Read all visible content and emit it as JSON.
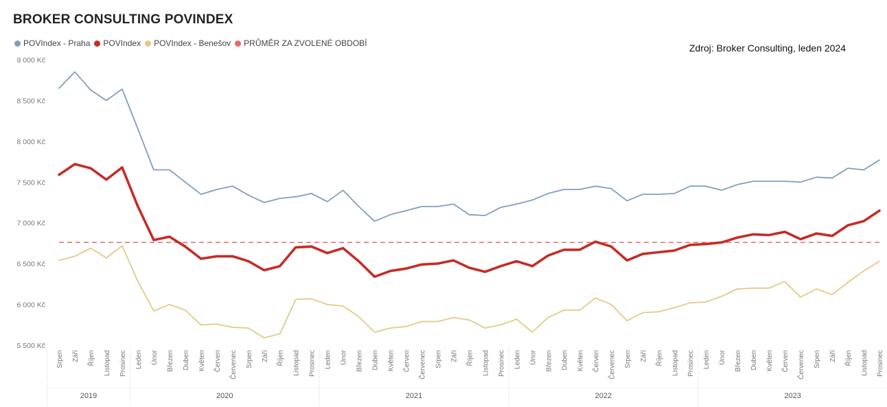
{
  "source_note": "Zdroj: Broker Consulting, leden 2024",
  "colors": {
    "praha": "#7f9fbd",
    "povindex": "#c62b26",
    "benesov": "#e5c985",
    "average": "#e86a6a"
  },
  "chart_data": {
    "type": "line",
    "title": "BROKER CONSULTING POVINDEX",
    "ylim": [
      5500,
      9000
    ],
    "yticks": [
      "5 500 Kč",
      "6 000 Kč",
      "6 500 Kč",
      "7 000 Kč",
      "7 500 Kč",
      "8 000 Kč",
      "8 500 Kč",
      "9 000 Kč"
    ],
    "ytick_values": [
      5500,
      6000,
      6500,
      7000,
      7500,
      8000,
      8500,
      9000
    ],
    "legend_position": "top-left",
    "grid": false,
    "categories": [
      "Srpen",
      "Září",
      "Říjen",
      "Listopad",
      "Prosinec",
      "Leden",
      "Únor",
      "Březen",
      "Duben",
      "Květen",
      "Červen",
      "Červenec",
      "Srpen",
      "Září",
      "Říjen",
      "Listopad",
      "Prosinec",
      "Leden",
      "Únor",
      "Březen",
      "Duben",
      "Květen",
      "Červen",
      "Červenec",
      "Srpen",
      "Září",
      "Říjen",
      "Listopad",
      "Prosinec",
      "Leden",
      "Únor",
      "Březen",
      "Duben",
      "Květen",
      "Červen",
      "Červenec",
      "Srpen",
      "Září",
      "Říjen",
      "Listopad",
      "Prosinec",
      "Leden",
      "Únor",
      "Březen",
      "Duben",
      "Květen",
      "Červen",
      "Červenec",
      "Srpen",
      "Září",
      "Říjen",
      "Listopad",
      "Prosinec"
    ],
    "years": [
      {
        "label": "2019",
        "count": 5
      },
      {
        "label": "2020",
        "count": 12
      },
      {
        "label": "2021",
        "count": 12
      },
      {
        "label": "2022",
        "count": 12
      },
      {
        "label": "2023",
        "count": 12
      }
    ],
    "series": [
      {
        "name": "POVIndex - Praha",
        "values": [
          8650,
          8850,
          8630,
          8500,
          8640,
          8150,
          7650,
          7650,
          7500,
          7350,
          7410,
          7450,
          7340,
          7250,
          7300,
          7320,
          7360,
          7260,
          7400,
          7200,
          7020,
          7100,
          7150,
          7200,
          7200,
          7230,
          7100,
          7090,
          7190,
          7230,
          7280,
          7360,
          7410,
          7410,
          7450,
          7420,
          7270,
          7350,
          7350,
          7360,
          7450,
          7450,
          7400,
          7470,
          7510,
          7510,
          7510,
          7500,
          7560,
          7550,
          7670,
          7650,
          7770
        ]
      },
      {
        "name": "POVIndex",
        "values": [
          7590,
          7720,
          7670,
          7530,
          7680,
          7200,
          6790,
          6830,
          6710,
          6560,
          6590,
          6590,
          6530,
          6420,
          6470,
          6700,
          6710,
          6630,
          6690,
          6530,
          6340,
          6410,
          6440,
          6490,
          6500,
          6540,
          6450,
          6400,
          6470,
          6530,
          6470,
          6600,
          6670,
          6670,
          6770,
          6710,
          6540,
          6620,
          6640,
          6660,
          6730,
          6740,
          6760,
          6820,
          6860,
          6850,
          6890,
          6800,
          6870,
          6840,
          6970,
          7020,
          7150
        ]
      },
      {
        "name": "POVIndex - Benešov",
        "values": [
          6540,
          6590,
          6690,
          6570,
          6720,
          6280,
          5920,
          6000,
          5930,
          5750,
          5760,
          5720,
          5710,
          5590,
          5640,
          6060,
          6070,
          6000,
          5980,
          5850,
          5660,
          5710,
          5730,
          5790,
          5790,
          5840,
          5810,
          5710,
          5750,
          5820,
          5660,
          5840,
          5930,
          5930,
          6080,
          6000,
          5800,
          5900,
          5910,
          5960,
          6020,
          6030,
          6100,
          6190,
          6200,
          6200,
          6280,
          6090,
          6190,
          6120,
          6270,
          6410,
          6530
        ]
      }
    ],
    "average": {
      "name": "PRŮMĚR ZA ZVOLENÉ OBDOBÍ",
      "value": 6760
    }
  }
}
